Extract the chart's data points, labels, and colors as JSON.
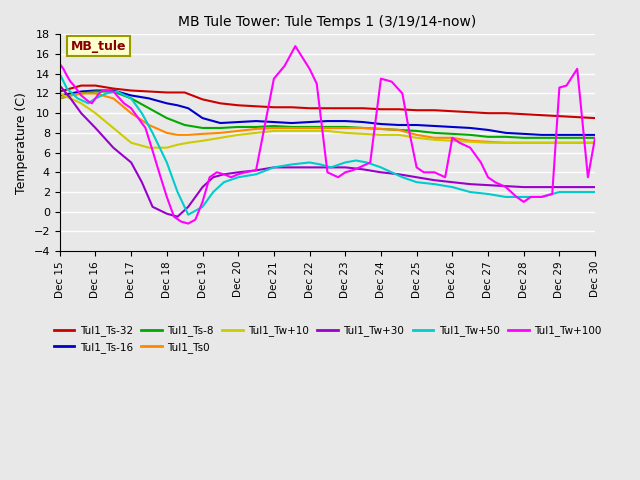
{
  "title": "MB Tule Tower: Tule Temps 1 (3/19/14-now)",
  "ylabel": "Temperature (C)",
  "xlim_days": [
    15,
    30
  ],
  "ylim": [
    -4,
    18
  ],
  "yticks": [
    -4,
    -2,
    0,
    2,
    4,
    6,
    8,
    10,
    12,
    14,
    16,
    18
  ],
  "bg_color": "#e8e8e8",
  "legend_box_label": "MB_tule",
  "legend_box_facecolor": "#ffffcc",
  "legend_box_edgecolor": "#999900",
  "xtick_positions": [
    15,
    16,
    17,
    18,
    19,
    20,
    21,
    22,
    23,
    24,
    25,
    26,
    27,
    28,
    29,
    30
  ],
  "xtick_labels": [
    "Dec 15",
    "Dec 16",
    "Dec 17",
    "Dec 18",
    "Dec 19",
    "Dec 20",
    "Dec 21",
    "Dec 22",
    "Dec 23",
    "Dec 24",
    "Dec 25",
    "Dec 26",
    "Dec 27",
    "Dec 28",
    "Dec 29",
    "Dec 30"
  ],
  "series_names": [
    "Tul1_Ts-32",
    "Tul1_Ts-16",
    "Tul1_Ts-8",
    "Tul1_Ts0",
    "Tul1_Tw+10",
    "Tul1_Tw+30",
    "Tul1_Tw+50",
    "Tul1_Tw+100"
  ],
  "series_colors": [
    "#cc0000",
    "#0000cc",
    "#00aa00",
    "#ff8800",
    "#cccc00",
    "#9900cc",
    "#00cccc",
    "#ff00ff"
  ],
  "series_x": [
    [
      15,
      15.3,
      15.6,
      16,
      16.5,
      17,
      17.5,
      18,
      18.5,
      19,
      19.5,
      20,
      20.5,
      21,
      21.5,
      22,
      22.5,
      23,
      23.5,
      24,
      24.5,
      25,
      25.5,
      26,
      26.5,
      27,
      27.5,
      28,
      28.5,
      29,
      29.5,
      30
    ],
    [
      15,
      15.3,
      15.6,
      16,
      16.5,
      17,
      17.5,
      18,
      18.3,
      18.6,
      19,
      19.5,
      20,
      20.5,
      21,
      21.5,
      22,
      22.5,
      23,
      23.5,
      24,
      24.5,
      25,
      25.5,
      26,
      26.5,
      27,
      27.5,
      28,
      28.5,
      29,
      29.5,
      30
    ],
    [
      15,
      15.3,
      15.6,
      16,
      16.5,
      17,
      17.5,
      18,
      18.5,
      19,
      19.5,
      20,
      20.5,
      21,
      21.5,
      22,
      22.5,
      23,
      23.5,
      24,
      24.5,
      25,
      25.5,
      26,
      26.5,
      27,
      27.5,
      28,
      28.5,
      29,
      29.5,
      30
    ],
    [
      15,
      15.3,
      15.6,
      16,
      16.5,
      17,
      17.5,
      18,
      18.3,
      18.6,
      19,
      19.5,
      20,
      20.5,
      21,
      21.5,
      22,
      22.5,
      23,
      23.5,
      24,
      24.5,
      25,
      25.5,
      26,
      26.5,
      27,
      27.5,
      28,
      28.5,
      29,
      29.5,
      30
    ],
    [
      15,
      15.3,
      15.6,
      16,
      16.5,
      17,
      17.5,
      18,
      18.3,
      18.6,
      19,
      19.5,
      20,
      20.5,
      21,
      21.5,
      22,
      22.5,
      23,
      23.5,
      24,
      24.5,
      25,
      25.5,
      26,
      26.5,
      27,
      27.5,
      28,
      28.5,
      29,
      29.5,
      30
    ],
    [
      15,
      15.3,
      15.6,
      16,
      16.5,
      17,
      17.3,
      17.6,
      18,
      18.3,
      18.6,
      19,
      19.3,
      19.6,
      20,
      20.5,
      21,
      21.5,
      22,
      22.5,
      23,
      23.5,
      24,
      24.5,
      25,
      25.5,
      26,
      26.5,
      27,
      27.5,
      28,
      28.5,
      29,
      29.5,
      30
    ],
    [
      15,
      15.2,
      15.5,
      15.8,
      16.0,
      16.3,
      16.6,
      17.0,
      17.3,
      17.6,
      18.0,
      18.3,
      18.6,
      19.0,
      19.3,
      19.6,
      20.0,
      20.5,
      21.0,
      21.5,
      22.0,
      22.3,
      22.6,
      23.0,
      23.3,
      23.6,
      24.0,
      24.3,
      24.6,
      25.0,
      25.5,
      26.0,
      26.5,
      27.0,
      27.5,
      28.0,
      28.5,
      29.0,
      29.5,
      30.0
    ],
    [
      15,
      15.1,
      15.2,
      15.3,
      15.4,
      15.5,
      15.6,
      15.7,
      15.8,
      15.9,
      16.0,
      16.1,
      16.2,
      16.5,
      16.8,
      17.0,
      17.2,
      17.4,
      17.6,
      17.8,
      18.0,
      18.2,
      18.4,
      18.6,
      18.8,
      19.0,
      19.2,
      19.4,
      19.6,
      19.8,
      20.0,
      20.2,
      20.5,
      21.0,
      21.3,
      21.6,
      22.0,
      22.2,
      22.5,
      22.8,
      23.0,
      23.2,
      23.4,
      23.7,
      24.0,
      24.3,
      24.6,
      24.8,
      25.0,
      25.2,
      25.5,
      25.8,
      26.0,
      26.2,
      26.5,
      26.8,
      27.0,
      27.2,
      27.5,
      27.8,
      28.0,
      28.2,
      28.5,
      28.8,
      29.0,
      29.2,
      29.5,
      29.8,
      30.0
    ]
  ],
  "series_y": [
    [
      12.2,
      12.5,
      12.8,
      12.8,
      12.5,
      12.3,
      12.2,
      12.1,
      12.1,
      11.4,
      11.0,
      10.8,
      10.7,
      10.6,
      10.6,
      10.5,
      10.5,
      10.5,
      10.5,
      10.4,
      10.4,
      10.3,
      10.3,
      10.2,
      10.1,
      10.0,
      10.0,
      9.9,
      9.8,
      9.7,
      9.6,
      9.5
    ],
    [
      11.8,
      12.0,
      12.2,
      12.3,
      12.3,
      11.8,
      11.5,
      11.0,
      10.8,
      10.5,
      9.5,
      9.0,
      9.1,
      9.2,
      9.1,
      9.0,
      9.1,
      9.2,
      9.2,
      9.1,
      8.9,
      8.8,
      8.8,
      8.7,
      8.6,
      8.5,
      8.3,
      8.0,
      7.9,
      7.8,
      7.8,
      7.8,
      7.8
    ],
    [
      11.5,
      11.8,
      12.0,
      12.2,
      12.2,
      11.5,
      10.5,
      9.5,
      8.8,
      8.5,
      8.5,
      8.6,
      8.6,
      8.7,
      8.6,
      8.6,
      8.6,
      8.6,
      8.5,
      8.4,
      8.3,
      8.2,
      8.0,
      7.9,
      7.8,
      7.6,
      7.6,
      7.5,
      7.5,
      7.5,
      7.5,
      7.5
    ],
    [
      11.5,
      11.8,
      12.0,
      12.0,
      11.5,
      10.0,
      8.8,
      8.0,
      7.8,
      7.8,
      7.9,
      8.0,
      8.2,
      8.4,
      8.5,
      8.5,
      8.5,
      8.5,
      8.5,
      8.5,
      8.4,
      8.3,
      7.8,
      7.5,
      7.5,
      7.2,
      7.1,
      7.0,
      7.0,
      7.0,
      7.0,
      7.0,
      7.0
    ],
    [
      12.0,
      11.5,
      11.0,
      10.0,
      8.5,
      7.0,
      6.5,
      6.5,
      6.8,
      7.0,
      7.2,
      7.5,
      7.8,
      8.0,
      8.2,
      8.2,
      8.2,
      8.2,
      8.0,
      7.9,
      7.8,
      7.8,
      7.5,
      7.3,
      7.2,
      7.1,
      7.0,
      7.0,
      7.0,
      7.0,
      7.0,
      7.0,
      7.0
    ],
    [
      12.8,
      11.5,
      10.0,
      8.5,
      6.5,
      5.0,
      3.0,
      0.5,
      -0.2,
      -0.5,
      0.5,
      2.5,
      3.5,
      3.8,
      4.0,
      4.2,
      4.5,
      4.5,
      4.5,
      4.5,
      4.5,
      4.3,
      4.0,
      3.8,
      3.5,
      3.2,
      3.0,
      2.8,
      2.7,
      2.6,
      2.5,
      2.5,
      2.5,
      2.5,
      2.5
    ],
    [
      14.0,
      12.5,
      11.5,
      11.0,
      11.5,
      12.0,
      12.2,
      11.5,
      10.0,
      8.0,
      5.0,
      2.0,
      -0.3,
      0.5,
      2.0,
      3.0,
      3.5,
      3.8,
      4.5,
      4.8,
      5.0,
      4.8,
      4.5,
      5.0,
      5.2,
      5.0,
      4.5,
      4.0,
      3.5,
      3.0,
      2.8,
      2.5,
      2.0,
      1.8,
      1.5,
      1.5,
      1.5,
      2.0,
      2.0,
      2.0
    ],
    [
      15.0,
      14.5,
      13.8,
      13.2,
      12.8,
      12.3,
      11.8,
      11.5,
      11.2,
      11.0,
      11.5,
      12.0,
      12.3,
      12.2,
      11.0,
      10.5,
      9.5,
      8.5,
      6.2,
      3.8,
      1.5,
      -0.5,
      -1.0,
      -1.2,
      -0.8,
      1.0,
      3.5,
      4.0,
      3.8,
      3.5,
      3.8,
      4.0,
      4.2,
      13.5,
      14.8,
      16.8,
      14.5,
      13.0,
      4.0,
      3.5,
      4.0,
      4.2,
      4.5,
      5.0,
      13.5,
      13.2,
      12.0,
      8.0,
      4.5,
      4.0,
      4.0,
      3.5,
      7.5,
      7.0,
      6.5,
      5.0,
      3.5,
      3.0,
      2.5,
      1.5,
      1.0,
      1.5,
      1.5,
      1.8,
      12.6,
      12.8,
      14.5,
      3.5,
      7.5
    ]
  ]
}
